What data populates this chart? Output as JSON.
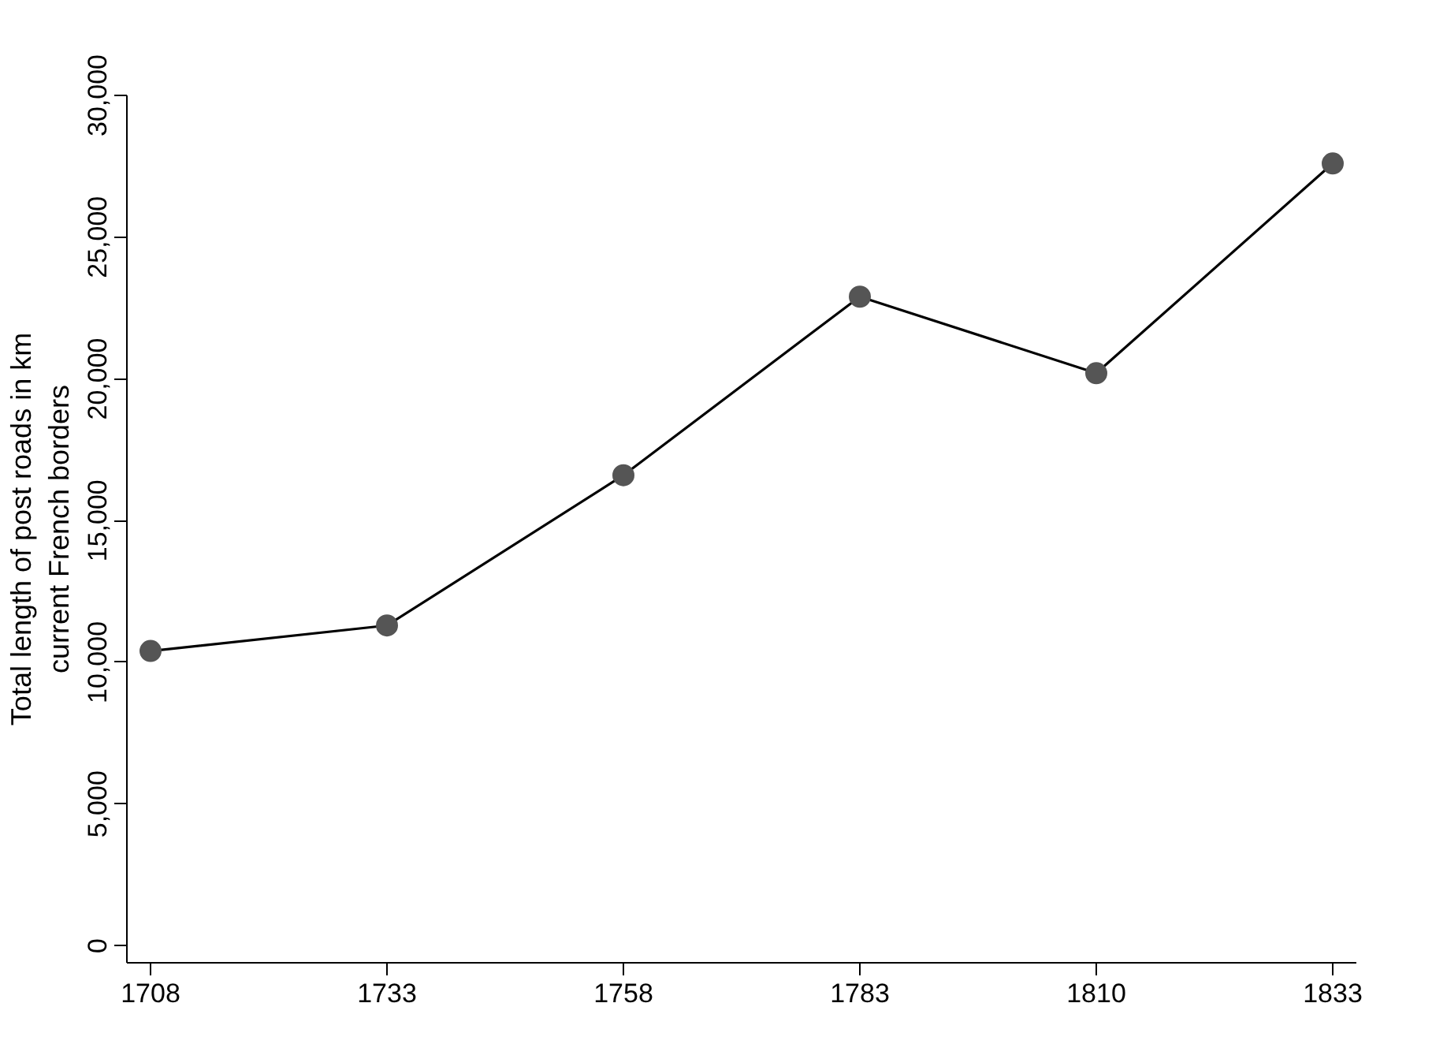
{
  "chart_data": {
    "type": "line",
    "ylabel": "Total length of post roads in km\ncurrent French borders",
    "categories": [
      "1708",
      "1733",
      "1758",
      "1783",
      "1810",
      "1833"
    ],
    "series": [
      {
        "color": "#555555",
        "values": [
          10400,
          11300,
          16600,
          22900,
          20200,
          27600
        ]
      }
    ],
    "ylim": [
      -600,
      30000
    ],
    "yticks": [
      {
        "value": 0,
        "label": "0"
      },
      {
        "value": 5000,
        "label": "5,000"
      },
      {
        "value": 10000,
        "label": "10,000"
      },
      {
        "value": 15000,
        "label": "15,000"
      },
      {
        "value": 20000,
        "label": "20,000"
      },
      {
        "value": 25000,
        "label": "25,000"
      },
      {
        "value": 30000,
        "label": "30,000"
      }
    ],
    "grid": false,
    "marker": "circle",
    "line_style": "solid"
  }
}
